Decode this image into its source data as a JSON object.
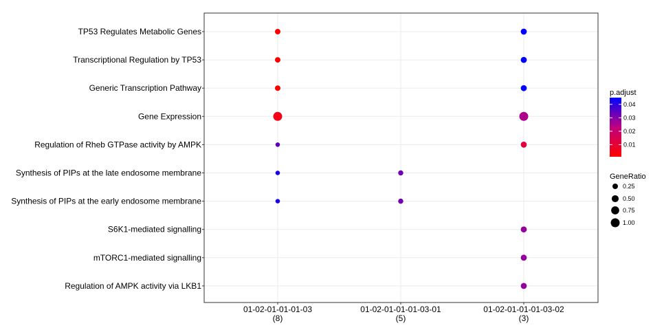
{
  "chart_data": {
    "type": "scatter",
    "title": "",
    "xlabel": "",
    "ylabel": "",
    "x_categories": [
      {
        "label": "01-02-01-01-01-03",
        "count": "(8)"
      },
      {
        "label": "01-02-01-01-01-03-01",
        "count": "(5)"
      },
      {
        "label": "01-02-01-01-01-03-02",
        "count": "(3)"
      }
    ],
    "y_categories": [
      "TP53 Regulates Metabolic Genes",
      "Transcriptional Regulation by TP53",
      "Generic Transcription Pathway",
      "Gene Expression",
      "Regulation of Rheb GTPase activity by AMPK",
      "Synthesis of PIPs at the late endosome membrane",
      "Synthesis of PIPs at the early endosome membrane",
      "S6K1-mediated signalling",
      "mTORC1-mediated signalling",
      "Regulation of AMPK activity via LKB1"
    ],
    "points": [
      {
        "x": 0,
        "y": 0,
        "gene_ratio": 0.25,
        "p_adjust": 0.001
      },
      {
        "x": 0,
        "y": 1,
        "gene_ratio": 0.25,
        "p_adjust": 0.001
      },
      {
        "x": 0,
        "y": 2,
        "gene_ratio": 0.25,
        "p_adjust": 0.001
      },
      {
        "x": 0,
        "y": 3,
        "gene_ratio": 1.0,
        "p_adjust": 0.005
      },
      {
        "x": 0,
        "y": 4,
        "gene_ratio": 0.125,
        "p_adjust": 0.034
      },
      {
        "x": 0,
        "y": 5,
        "gene_ratio": 0.125,
        "p_adjust": 0.042
      },
      {
        "x": 0,
        "y": 6,
        "gene_ratio": 0.125,
        "p_adjust": 0.042
      },
      {
        "x": 1,
        "y": 5,
        "gene_ratio": 0.2,
        "p_adjust": 0.032
      },
      {
        "x": 1,
        "y": 6,
        "gene_ratio": 0.2,
        "p_adjust": 0.032
      },
      {
        "x": 2,
        "y": 0,
        "gene_ratio": 0.33,
        "p_adjust": 0.045
      },
      {
        "x": 2,
        "y": 1,
        "gene_ratio": 0.33,
        "p_adjust": 0.045
      },
      {
        "x": 2,
        "y": 2,
        "gene_ratio": 0.33,
        "p_adjust": 0.045
      },
      {
        "x": 2,
        "y": 3,
        "gene_ratio": 1.0,
        "p_adjust": 0.025
      },
      {
        "x": 2,
        "y": 4,
        "gene_ratio": 0.33,
        "p_adjust": 0.012
      },
      {
        "x": 2,
        "y": 7,
        "gene_ratio": 0.33,
        "p_adjust": 0.028
      },
      {
        "x": 2,
        "y": 8,
        "gene_ratio": 0.33,
        "p_adjust": 0.028
      },
      {
        "x": 2,
        "y": 9,
        "gene_ratio": 0.33,
        "p_adjust": 0.028
      }
    ],
    "grid": true,
    "legend_position": "right",
    "color_legend": {
      "title": "p.adjust",
      "ticks": [
        0.01,
        0.02,
        0.03,
        0.04
      ],
      "tick_labels": [
        "0.01",
        "0.02",
        "0.03",
        "0.04"
      ],
      "range": [
        0.001,
        0.045
      ],
      "low_color": "#FF0000",
      "high_color": "#0000FF"
    },
    "size_legend": {
      "title": "GeneRatio",
      "values": [
        0.25,
        0.5,
        0.75,
        1.0
      ],
      "labels": [
        "0.25",
        "0.50",
        "0.75",
        "1.00"
      ]
    }
  }
}
